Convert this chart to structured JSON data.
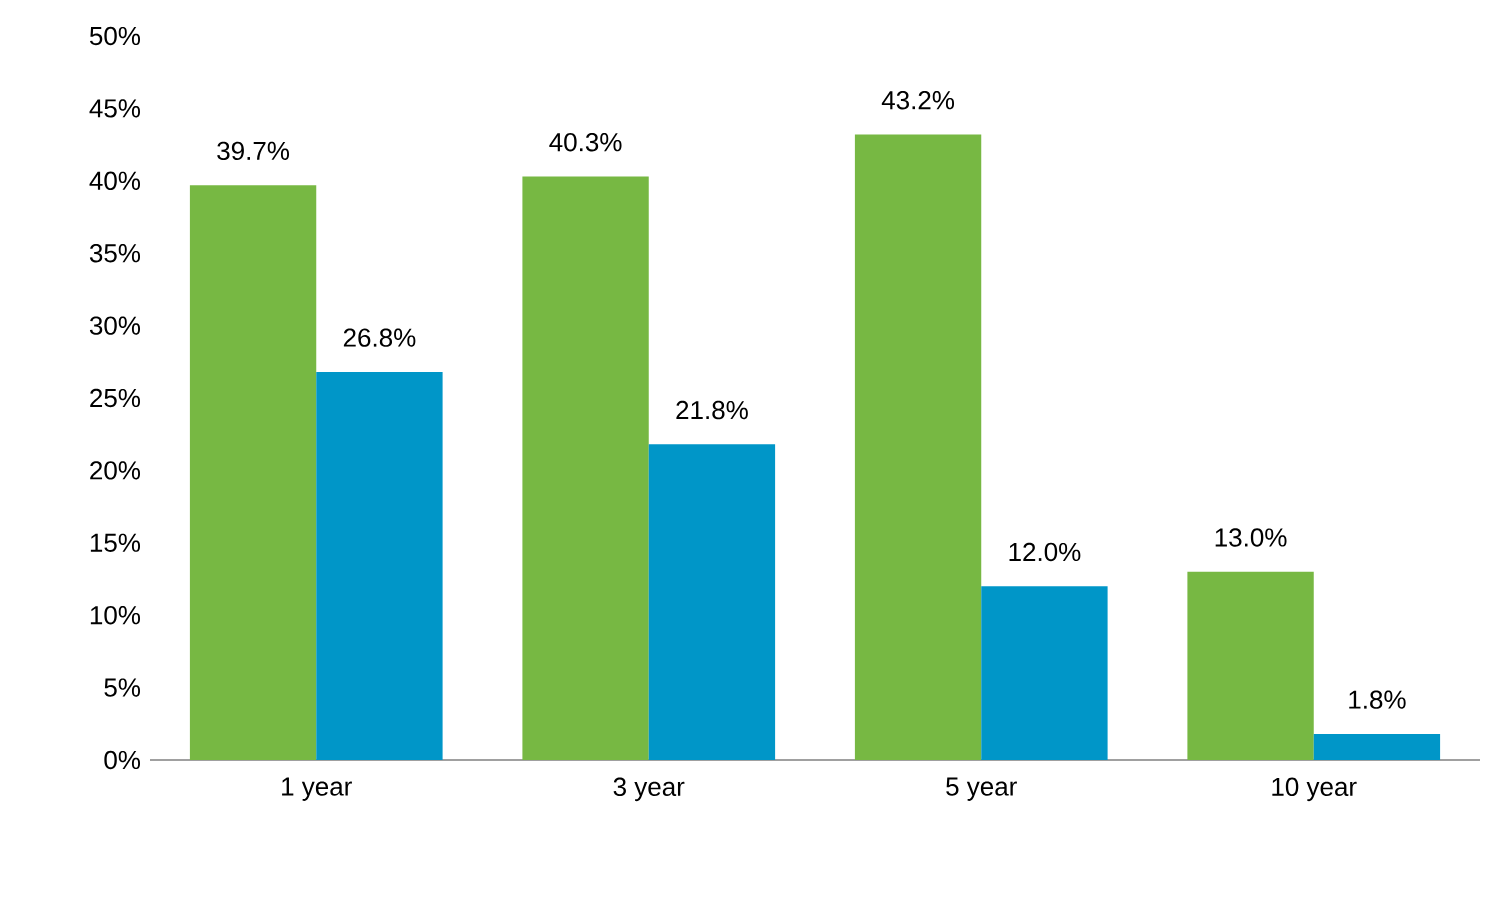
{
  "chart_data": {
    "type": "bar",
    "categories": [
      "1 year",
      "3 year",
      "5 year",
      "10 year"
    ],
    "series": [
      {
        "color": "#77b843",
        "values": [
          39.7,
          40.3,
          43.2,
          13.0
        ],
        "value_labels": [
          "39.7%",
          "40.3%",
          "43.2%",
          "13.0%"
        ]
      },
      {
        "color": "#0096c8",
        "values": [
          26.8,
          21.8,
          12.0,
          1.8
        ],
        "value_labels": [
          "26.8%",
          "21.8%",
          "12.0%",
          "1.8%"
        ]
      }
    ],
    "ylim": [
      0,
      50
    ],
    "yticks": [
      {
        "value": 0,
        "label": "0%"
      },
      {
        "value": 5,
        "label": "5%"
      },
      {
        "value": 10,
        "label": "10%"
      },
      {
        "value": 15,
        "label": "15%"
      },
      {
        "value": 20,
        "label": "20%"
      },
      {
        "value": 25,
        "label": "25%"
      },
      {
        "value": 30,
        "label": "30%"
      },
      {
        "value": 35,
        "label": "35%"
      },
      {
        "value": 40,
        "label": "40%"
      },
      {
        "value": 45,
        "label": "45%"
      },
      {
        "value": 50,
        "label": "50%"
      }
    ],
    "grid": false
  }
}
